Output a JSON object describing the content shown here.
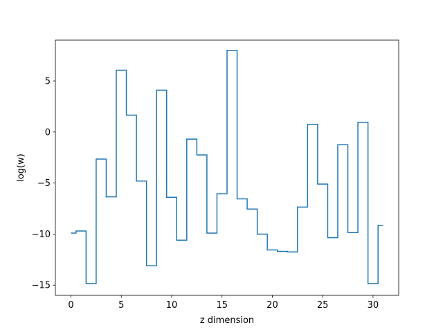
{
  "chart_data": {
    "type": "line",
    "drawstyle": "steps-mid",
    "title": "",
    "xlabel": "z dimension",
    "ylabel": "log(w)",
    "xlim": [
      -1.55,
      32.55
    ],
    "ylim": [
      -16.0,
      9.0
    ],
    "xticks": [
      0,
      5,
      10,
      15,
      20,
      25,
      30
    ],
    "yticks": [
      -15,
      -10,
      -5,
      0,
      5
    ],
    "ytick_labels": [
      "−15",
      "−10",
      "−5",
      "0",
      "5"
    ],
    "grid": false,
    "color": "#1f77b4",
    "x": [
      0,
      1,
      2,
      3,
      4,
      5,
      6,
      7,
      8,
      9,
      10,
      11,
      12,
      13,
      14,
      15,
      16,
      17,
      18,
      19,
      20,
      21,
      22,
      23,
      24,
      25,
      26,
      27,
      28,
      29,
      30,
      31
    ],
    "values": [
      -9.9,
      -9.7,
      -14.85,
      -2.65,
      -6.35,
      6.05,
      1.65,
      -4.8,
      -13.1,
      4.1,
      -6.4,
      -10.6,
      -0.7,
      -2.25,
      -9.9,
      -6.05,
      8.0,
      -6.55,
      -7.55,
      -10.0,
      -11.55,
      -11.7,
      -11.75,
      -7.35,
      0.75,
      -5.1,
      -10.35,
      -1.25,
      -9.85,
      0.95,
      -14.85,
      -9.15
    ]
  }
}
